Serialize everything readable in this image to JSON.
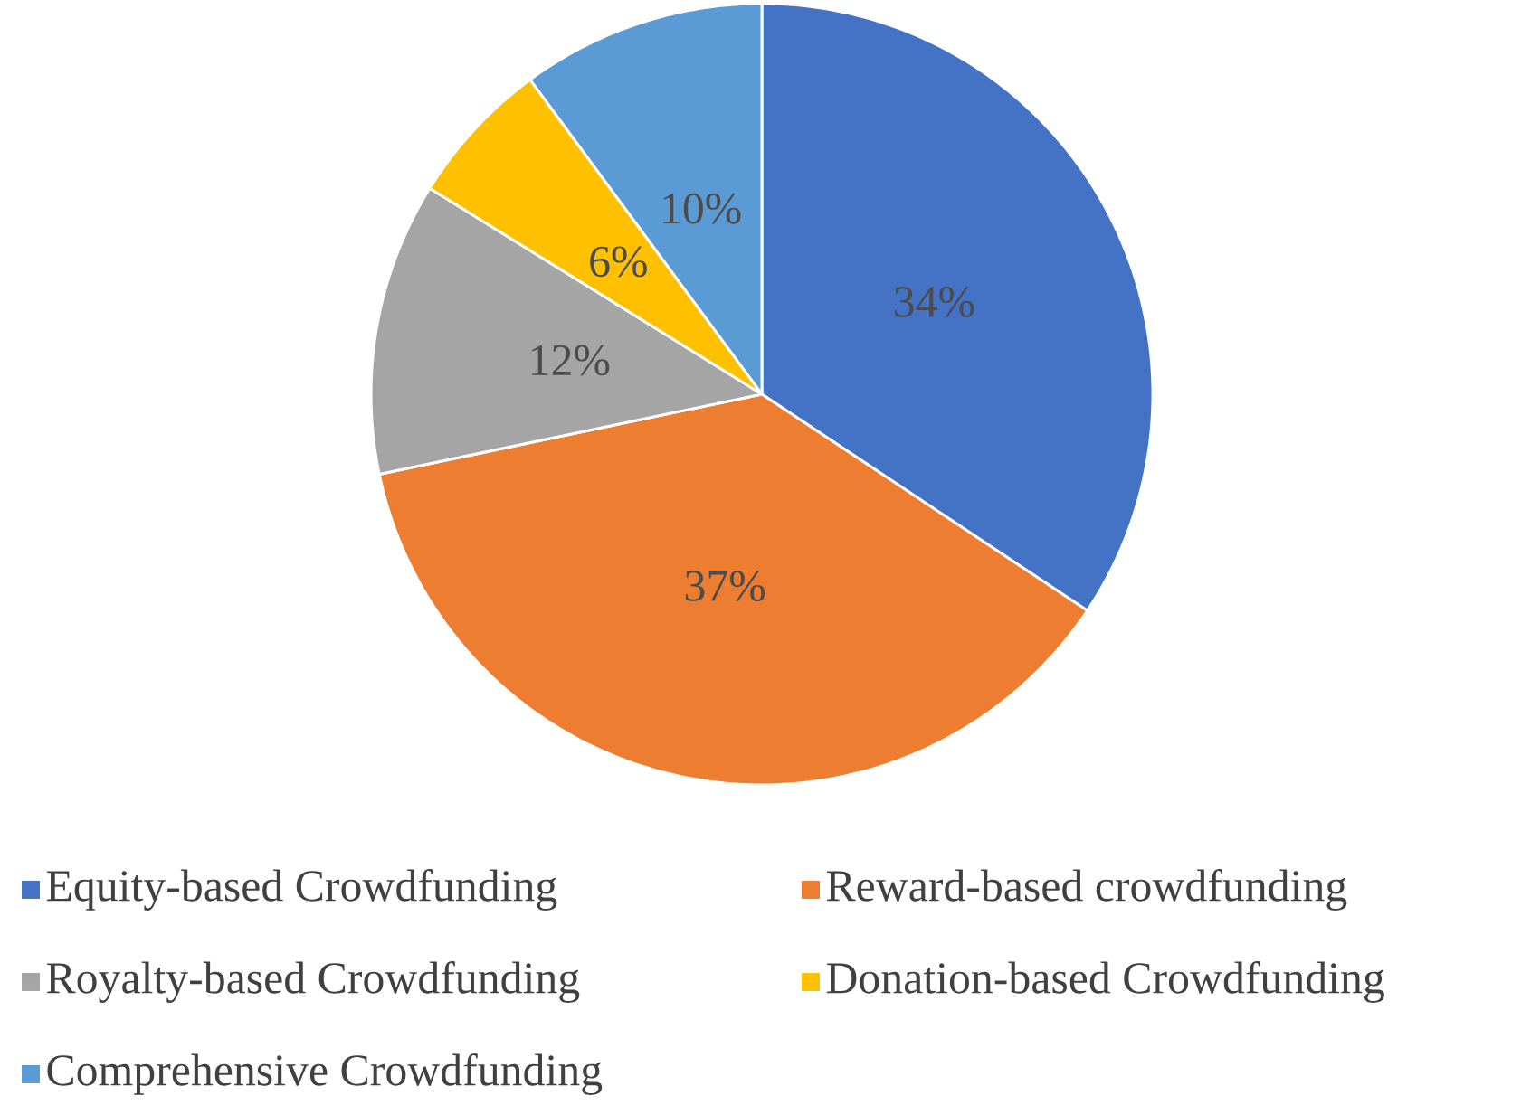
{
  "chart_data": {
    "type": "pie",
    "categories": [
      "Equity-based Crowdfunding",
      "Reward-based crowdfunding",
      "Royalty-based Crowdfunding",
      "Donation-based Crowdfunding",
      "Comprehensive Crowdfunding"
    ],
    "values": [
      34,
      37,
      12,
      6,
      10
    ],
    "value_labels": [
      "34%",
      "37%",
      "12%",
      "6%",
      "10%"
    ],
    "colors": [
      "#4472c4",
      "#ed7d31",
      "#a5a5a5",
      "#ffc000",
      "#5b9bd5"
    ],
    "legend": "bottom"
  }
}
